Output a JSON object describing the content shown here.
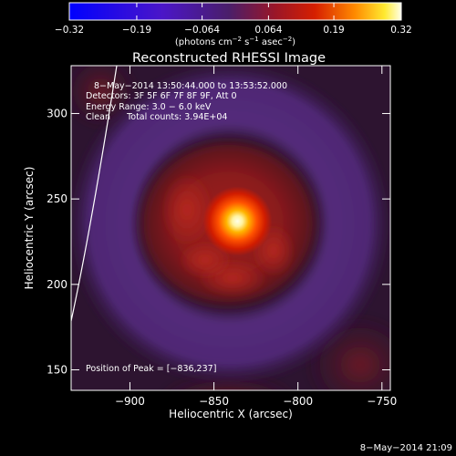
{
  "chart_data": {
    "type": "heatmap",
    "title": "Reconstructed RHESSI Image",
    "xlabel": "Heliocentric X (arcsec)",
    "ylabel": "Heliocentric Y (arcsec)",
    "xlim": [
      -935,
      -745
    ],
    "ylim": [
      138,
      328
    ],
    "x_ticks": [
      -900,
      -850,
      -800,
      -750
    ],
    "y_ticks": [
      150,
      200,
      250,
      300
    ],
    "x_tick_labels": [
      "−900",
      "−850",
      "−800",
      "−750"
    ],
    "y_tick_labels": [
      "150",
      "200",
      "250",
      "300"
    ],
    "colorbar": {
      "range": [
        -0.32,
        0.32
      ],
      "ticks": [
        -0.32,
        -0.19,
        -0.064,
        0.064,
        0.19,
        0.32
      ],
      "tick_labels": [
        "−0.32",
        "−0.19",
        "−0.064",
        "0.064",
        "0.19",
        "0.32"
      ],
      "unit_parts": [
        "(photons cm",
        "−2",
        " s",
        "−1",
        " asec",
        "−2",
        ")"
      ]
    },
    "peak": [
      -836,
      237
    ],
    "annotations": [
      "8−May−2014 13:50:44.000 to 13:53:52.000",
      "Detectors: 3F 5F 6F 7F 8F 9F, Att 0",
      "Energy Range: 3.0 − 6.0 keV",
      "Clean      Total counts: 3.94E+04"
    ],
    "peak_label": "Position of Peak = [−836,237]",
    "footer": "8−May−2014 21:09"
  }
}
